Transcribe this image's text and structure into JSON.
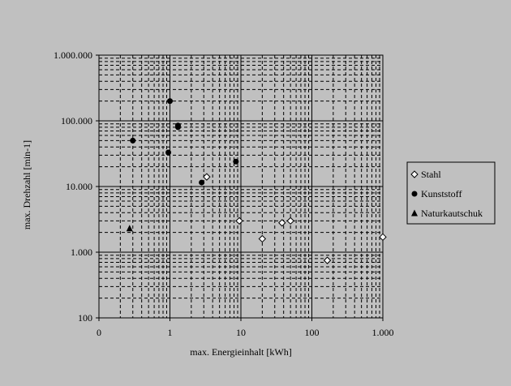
{
  "chart_data": {
    "type": "scatter",
    "x_scale": "log",
    "y_scale": "log",
    "xlim": [
      0.1,
      1000
    ],
    "ylim": [
      100,
      1000000
    ],
    "xlabel": "max. Energieinhalt [kWh]",
    "ylabel": "max. Drehzahl [min-1]",
    "x_ticks": [
      {
        "value": 0.1,
        "label": "0"
      },
      {
        "value": 1,
        "label": "1"
      },
      {
        "value": 10,
        "label": "10"
      },
      {
        "value": 100,
        "label": "100"
      },
      {
        "value": 1000,
        "label": "1.000"
      }
    ],
    "y_ticks": [
      {
        "value": 100,
        "label": "100"
      },
      {
        "value": 1000,
        "label": "1.000"
      },
      {
        "value": 10000,
        "label": "10.000"
      },
      {
        "value": 100000,
        "label": "100.000"
      },
      {
        "value": 1000000,
        "label": "1.000.000"
      }
    ],
    "grid": "major solid, minor dashed",
    "legend_position": "right",
    "series": [
      {
        "name": "Stahl",
        "marker": "diamond-open",
        "points": [
          {
            "x": 3.3,
            "y": 14000
          },
          {
            "x": 9.5,
            "y": 3000
          },
          {
            "x": 20,
            "y": 1600
          },
          {
            "x": 38,
            "y": 2800
          },
          {
            "x": 50,
            "y": 3000
          },
          {
            "x": 165,
            "y": 750
          },
          {
            "x": 1000,
            "y": 1700
          }
        ]
      },
      {
        "name": "Kunststoff",
        "marker": "circle-filled",
        "points": [
          {
            "x": 0.3,
            "y": 50000
          },
          {
            "x": 0.95,
            "y": 33000
          },
          {
            "x": 1.0,
            "y": 200000
          },
          {
            "x": 1.3,
            "y": 85000
          },
          {
            "x": 1.3,
            "y": 80000
          },
          {
            "x": 2.8,
            "y": 11500
          },
          {
            "x": 8.5,
            "y": 24000
          }
        ]
      },
      {
        "name": "Naturkautschuk",
        "marker": "triangle-filled",
        "points": [
          {
            "x": 0.27,
            "y": 2300
          }
        ]
      }
    ]
  }
}
